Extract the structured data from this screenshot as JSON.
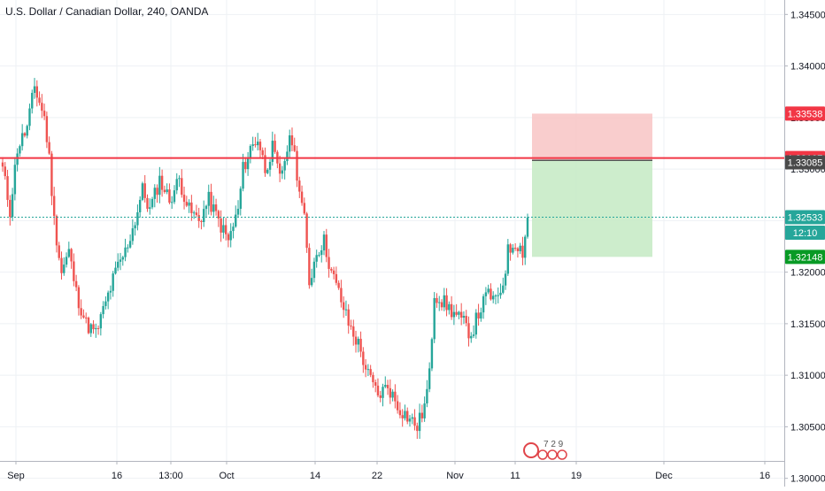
{
  "header": {
    "symbol_title": "U.S. Dollar / Canadian Dollar, 240, OANDA"
  },
  "colors": {
    "up": "#26a69a",
    "down": "#ef5350",
    "grid": "#eef1f4",
    "resistance_line": "#f23645",
    "stop_zone": "#f8c4c4",
    "target_zone": "#c8ebc6",
    "last_price_label": "#26a69a",
    "stop_label": "#f23645",
    "target_label": "#089a25",
    "entry_label": "#4a4a4a"
  },
  "price_labels": {
    "stop": "1.33538",
    "resistance": "1.33107",
    "entry": "1.33085",
    "last": "1.32533",
    "countdown": "12:10",
    "target": "1.32148"
  },
  "logo_text": "7 2 9",
  "chart_data": {
    "type": "candlestick",
    "title": "U.S. Dollar / Canadian Dollar, 240, OANDA",
    "y_ticks": [
      "1.34500",
      "1.34000",
      "1.33500",
      "1.33000",
      "1.32500",
      "1.32000",
      "1.31500",
      "1.31000",
      "1.30500",
      "1.30000"
    ],
    "ylim": [
      1.2992,
      1.3464
    ],
    "x_ticks": [
      "Sep",
      "16",
      "13:00",
      "Oct",
      "14",
      "22",
      "Nov",
      "11",
      "19",
      "Dec",
      "16"
    ],
    "grid": true,
    "horizontal_lines": [
      {
        "price": 1.33107,
        "label": "resistance"
      }
    ],
    "trade_position": {
      "type": "short",
      "stop": 1.33538,
      "entry": 1.33085,
      "target": 1.32148
    },
    "last_price": 1.32533,
    "anchors": [
      [
        1.33,
        0
      ],
      [
        1.326,
        3
      ],
      [
        1.332,
        6
      ],
      [
        1.334,
        10
      ],
      [
        1.338,
        13
      ],
      [
        1.335,
        17
      ],
      [
        1.331,
        19
      ],
      [
        1.325,
        21
      ],
      [
        1.32,
        24
      ],
      [
        1.322,
        27
      ],
      [
        1.318,
        30
      ],
      [
        1.315,
        34
      ],
      [
        1.314,
        38
      ],
      [
        1.317,
        42
      ],
      [
        1.32,
        46
      ],
      [
        1.322,
        50
      ],
      [
        1.325,
        54
      ],
      [
        1.328,
        57
      ],
      [
        1.326,
        60
      ],
      [
        1.329,
        64
      ],
      [
        1.327,
        68
      ],
      [
        1.329,
        72
      ],
      [
        1.326,
        76
      ],
      [
        1.325,
        80
      ],
      [
        1.327,
        84
      ],
      [
        1.325,
        88
      ],
      [
        1.323,
        92
      ],
      [
        1.326,
        96
      ],
      [
        1.33,
        98
      ],
      [
        1.332,
        101
      ],
      [
        1.333,
        104
      ],
      [
        1.33,
        107
      ],
      [
        1.332,
        110
      ],
      [
        1.329,
        113
      ],
      [
        1.332,
        116
      ],
      [
        1.333,
        118
      ],
      [
        1.328,
        121
      ],
      [
        1.325,
        123
      ],
      [
        1.319,
        125
      ],
      [
        1.322,
        128
      ],
      [
        1.323,
        131
      ],
      [
        1.32,
        134
      ],
      [
        1.318,
        137
      ],
      [
        1.315,
        141
      ],
      [
        1.313,
        145
      ],
      [
        1.31,
        149
      ],
      [
        1.308,
        153
      ],
      [
        1.309,
        157
      ],
      [
        1.307,
        161
      ],
      [
        1.306,
        165
      ],
      [
        1.305,
        169
      ],
      [
        1.307,
        172
      ],
      [
        1.31,
        174
      ],
      [
        1.318,
        176
      ],
      [
        1.317,
        180
      ],
      [
        1.316,
        184
      ],
      [
        1.315,
        188
      ],
      [
        1.314,
        191
      ],
      [
        1.316,
        194
      ],
      [
        1.318,
        198
      ],
      [
        1.317,
        201
      ],
      [
        1.319,
        204
      ],
      [
        1.322,
        206
      ],
      [
        1.323,
        209
      ],
      [
        1.322,
        212
      ],
      [
        1.3253,
        214
      ]
    ]
  }
}
